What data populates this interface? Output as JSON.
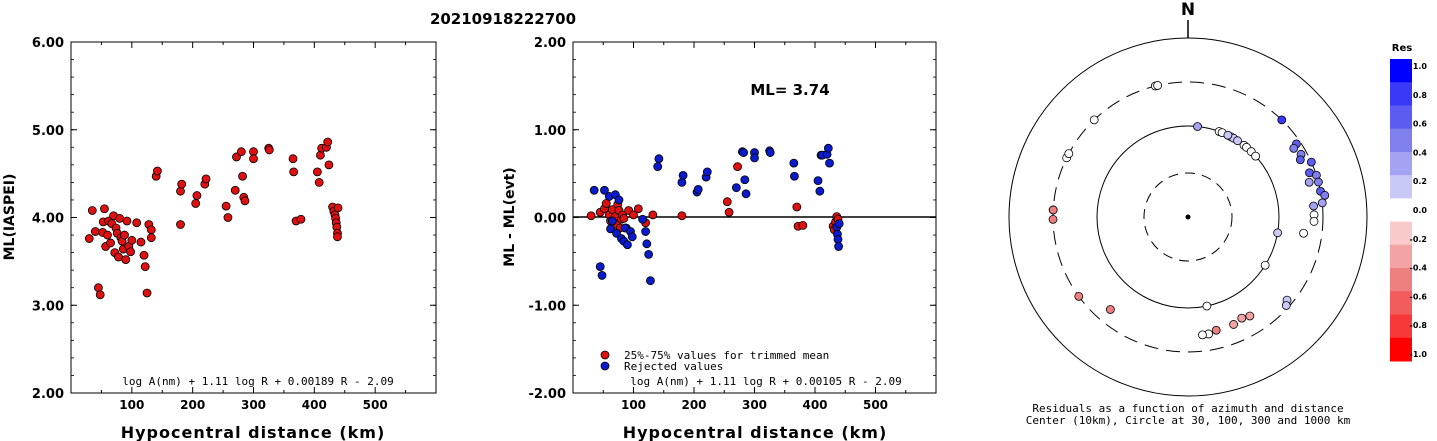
{
  "figure_title": "20210918222700",
  "chart_data": [
    {
      "type": "scatter",
      "ylabel": "ML(IASPEI)",
      "xlabel": "Hypocentral distance (km)",
      "xlim": [
        0,
        600
      ],
      "ylim": [
        2.0,
        6.0
      ],
      "x_ticks": [
        "100",
        "200",
        "300",
        "400",
        "500"
      ],
      "y_ticks": [
        "2.00",
        "3.00",
        "4.00",
        "5.00",
        "6.00"
      ],
      "formula": "log A(nm) + 1.11 log R + 0.00189 R - 2.09",
      "series": [
        {
          "color": "#dd1111",
          "points": [
            [
              30,
              3.76
            ],
            [
              35,
              4.08
            ],
            [
              40,
              3.84
            ],
            [
              45,
              3.2
            ],
            [
              48,
              3.12
            ],
            [
              52,
              3.83
            ],
            [
              53,
              3.95
            ],
            [
              55,
              4.1
            ],
            [
              57,
              3.67
            ],
            [
              60,
              3.8
            ],
            [
              62,
              3.96
            ],
            [
              65,
              3.71
            ],
            [
              67,
              3.93
            ],
            [
              70,
              4.02
            ],
            [
              72,
              3.6
            ],
            [
              74,
              3.88
            ],
            [
              76,
              3.82
            ],
            [
              78,
              3.55
            ],
            [
              80,
              3.99
            ],
            [
              82,
              3.77
            ],
            [
              84,
              3.73
            ],
            [
              86,
              3.64
            ],
            [
              88,
              3.8
            ],
            [
              90,
              3.52
            ],
            [
              92,
              3.96
            ],
            [
              95,
              3.67
            ],
            [
              98,
              3.61
            ],
            [
              100,
              3.74
            ],
            [
              108,
              3.94
            ],
            [
              115,
              3.72
            ],
            [
              120,
              3.57
            ],
            [
              122,
              3.44
            ],
            [
              125,
              3.14
            ],
            [
              128,
              3.92
            ],
            [
              132,
              3.86
            ],
            [
              132,
              3.77
            ],
            [
              140,
              4.47
            ],
            [
              142,
              4.53
            ],
            [
              180,
              4.3
            ],
            [
              182,
              4.38
            ],
            [
              180,
              3.92
            ],
            [
              205,
              4.16
            ],
            [
              207,
              4.25
            ],
            [
              220,
              4.38
            ],
            [
              222,
              4.44
            ],
            [
              255,
              4.13
            ],
            [
              258,
              4.0
            ],
            [
              270,
              4.31
            ],
            [
              272,
              4.69
            ],
            [
              280,
              4.75
            ],
            [
              282,
              4.47
            ],
            [
              284,
              4.23
            ],
            [
              286,
              4.19
            ],
            [
              300,
              4.75
            ],
            [
              300,
              4.67
            ],
            [
              325,
              4.79
            ],
            [
              326,
              4.77
            ],
            [
              365,
              4.67
            ],
            [
              366,
              4.52
            ],
            [
              370,
              3.96
            ],
            [
              378,
              3.98
            ],
            [
              405,
              4.52
            ],
            [
              408,
              4.4
            ],
            [
              410,
              4.71
            ],
            [
              412,
              4.79
            ],
            [
              420,
              4.8
            ],
            [
              422,
              4.86
            ],
            [
              424,
              4.6
            ],
            [
              430,
              4.12
            ],
            [
              432,
              4.07
            ],
            [
              434,
              4.03
            ],
            [
              435,
              3.99
            ],
            [
              436,
              3.94
            ],
            [
              437,
              3.89
            ],
            [
              438,
              3.82
            ],
            [
              438,
              3.78
            ],
            [
              439,
              4.11
            ]
          ]
        }
      ]
    },
    {
      "type": "scatter",
      "ylabel": "ML - ML(evt)",
      "xlabel": "Hypocentral distance (km)",
      "xlim": [
        0,
        600
      ],
      "ylim": [
        -2.0,
        2.0
      ],
      "x_ticks": [
        "100",
        "200",
        "300",
        "400",
        "500"
      ],
      "y_ticks": [
        "-2.00",
        "-1.00",
        "0.00",
        "1.00",
        "2.00"
      ],
      "annotation": "ML= 3.74",
      "formula": "log A(nm) + 1.11 log R + 0.00105 R - 2.09",
      "legend": [
        "25%-75% values for trimmed mean",
        "Rejected values"
      ],
      "series": [
        {
          "color": "#dd1111",
          "points": [
            [
              30,
              0.02
            ],
            [
              45,
              0.06
            ],
            [
              52,
              0.1
            ],
            [
              55,
              0.16
            ],
            [
              60,
              0.03
            ],
            [
              62,
              -0.04
            ],
            [
              65,
              0.09
            ],
            [
              70,
              0.01
            ],
            [
              72,
              -0.08
            ],
            [
              74,
              0.15
            ],
            [
              76,
              0.08
            ],
            [
              78,
              -0.12
            ],
            [
              80,
              -0.02
            ],
            [
              82,
              0.03
            ],
            [
              84,
              -0.01
            ],
            [
              88,
              -0.12
            ],
            [
              92,
              0.08
            ],
            [
              100,
              0.03
            ],
            [
              108,
              0.1
            ],
            [
              120,
              -0.06
            ],
            [
              132,
              0.03
            ],
            [
              180,
              0.02
            ],
            [
              255,
              0.18
            ],
            [
              258,
              0.06
            ],
            [
              272,
              0.58
            ],
            [
              370,
              0.12
            ],
            [
              372,
              -0.1
            ],
            [
              380,
              -0.09
            ],
            [
              430,
              -0.1
            ],
            [
              432,
              -0.14
            ],
            [
              434,
              -0.05
            ],
            [
              436,
              0.01
            ],
            [
              438,
              -0.02
            ]
          ]
        },
        {
          "color": "#0a1bcc",
          "points": [
            [
              35,
              0.31
            ],
            [
              45,
              -0.56
            ],
            [
              48,
              -0.66
            ],
            [
              52,
              0.31
            ],
            [
              60,
              0.24
            ],
            [
              62,
              -0.13
            ],
            [
              65,
              -0.04
            ],
            [
              70,
              0.26
            ],
            [
              72,
              -0.18
            ],
            [
              76,
              0.2
            ],
            [
              80,
              -0.24
            ],
            [
              84,
              -0.27
            ],
            [
              86,
              -0.12
            ],
            [
              90,
              -0.31
            ],
            [
              95,
              -0.16
            ],
            [
              98,
              -0.22
            ],
            [
              115,
              -0.02
            ],
            [
              120,
              -0.16
            ],
            [
              122,
              -0.3
            ],
            [
              125,
              -0.42
            ],
            [
              128,
              -0.72
            ],
            [
              140,
              0.58
            ],
            [
              142,
              0.67
            ],
            [
              180,
              0.4
            ],
            [
              182,
              0.48
            ],
            [
              205,
              0.29
            ],
            [
              207,
              0.32
            ],
            [
              220,
              0.46
            ],
            [
              222,
              0.52
            ],
            [
              270,
              0.34
            ],
            [
              280,
              0.75
            ],
            [
              282,
              0.74
            ],
            [
              284,
              0.43
            ],
            [
              286,
              0.27
            ],
            [
              300,
              0.74
            ],
            [
              300,
              0.68
            ],
            [
              325,
              0.76
            ],
            [
              326,
              0.74
            ],
            [
              365,
              0.62
            ],
            [
              366,
              0.47
            ],
            [
              405,
              0.42
            ],
            [
              408,
              0.3
            ],
            [
              410,
              0.71
            ],
            [
              412,
              0.71
            ],
            [
              420,
              0.72
            ],
            [
              422,
              0.79
            ],
            [
              424,
              0.62
            ],
            [
              436,
              -0.11
            ],
            [
              437,
              -0.19
            ],
            [
              438,
              -0.25
            ],
            [
              439,
              -0.33
            ],
            [
              440,
              -0.07
            ]
          ]
        }
      ]
    },
    {
      "type": "scatter",
      "north_label": "N",
      "caption_line1": "Residuals as a function of azimuth and distance",
      "caption_line2": "Center (10km), Circle at 30, 100, 300 and 1000 km",
      "colorbar_title": "Res",
      "colorbar_ticks": [
        "1.0",
        "0.8",
        "0.6",
        "0.4",
        "0.2",
        "0.0",
        "-0.2",
        "-0.4",
        "-0.6",
        "-0.8",
        "-1.0"
      ],
      "colorbar_colors": [
        "#0000ff",
        "#3939f7",
        "#5c5cf2",
        "#7f7fee",
        "#a3a3f2",
        "#c9c9f8",
        "#ffffff",
        "#f8caca",
        "#f2a3a3",
        "#ee7f7f",
        "#f25c5c",
        "#f73939",
        "#ff0000"
      ],
      "rings_km": [
        30,
        100,
        300,
        1000
      ],
      "points": [
        {
          "az": 44,
          "dist": 300,
          "res": 0.8
        },
        {
          "az": -14,
          "dist": 300,
          "res": 0.0
        },
        {
          "az": -13,
          "dist": 300,
          "res": 0.0
        },
        {
          "az": -44,
          "dist": 300,
          "res": 0.0
        },
        {
          "az": -64,
          "dist": 300,
          "res": 0.0
        },
        {
          "az": -62,
          "dist": 300,
          "res": 0.0
        },
        {
          "az": -87,
          "dist": 300,
          "res": -0.5
        },
        {
          "az": -87,
          "dist": 300,
          "res": -0.5
        },
        {
          "az": -91,
          "dist": 300,
          "res": -0.5
        },
        {
          "az": -126,
          "dist": 300,
          "res": -0.45
        },
        {
          "az": 56,
          "dist": 270,
          "res": 0.6
        },
        {
          "az": 57,
          "dist": 240,
          "res": 0.55
        },
        {
          "az": 61,
          "dist": 260,
          "res": 0.5
        },
        {
          "az": 63,
          "dist": 240,
          "res": 0.6
        },
        {
          "az": 66,
          "dist": 300,
          "res": 0.6
        },
        {
          "az": 70,
          "dist": 260,
          "res": 0.6
        },
        {
          "az": 72,
          "dist": 300,
          "res": 0.55
        },
        {
          "az": 74,
          "dist": 240,
          "res": 0.4
        },
        {
          "az": 75,
          "dist": 300,
          "res": 0.55
        },
        {
          "az": 79,
          "dist": 300,
          "res": 0.7
        },
        {
          "az": 81,
          "dist": 330,
          "res": 0.45
        },
        {
          "az": 84,
          "dist": 300,
          "res": 0.3
        },
        {
          "az": 85,
          "dist": 240,
          "res": 0.3
        },
        {
          "az": 89,
          "dist": 240,
          "res": 0.0
        },
        {
          "az": 92,
          "dist": 240,
          "res": 0.0
        },
        {
          "az": 98,
          "dist": 190,
          "res": 0.0
        },
        {
          "az": 130,
          "dist": 260,
          "res": 0.2
        },
        {
          "az": 132,
          "dist": 280,
          "res": 0.2
        },
        {
          "az": 148,
          "dist": 190,
          "res": -0.3
        },
        {
          "az": 152,
          "dist": 180,
          "res": -0.4
        },
        {
          "az": 157,
          "dist": 190,
          "res": -0.3
        },
        {
          "az": 166,
          "dist": 190,
          "res": -0.5
        },
        {
          "az": 170,
          "dist": 200,
          "res": 0.0
        },
        {
          "az": 173,
          "dist": 200,
          "res": 0.0
        },
        {
          "az": 168,
          "dist": 100,
          "res": 0.0
        },
        {
          "az": -140,
          "dist": 210,
          "res": -0.45
        },
        {
          "az": 20,
          "dist": 100,
          "res": 0.0
        },
        {
          "az": 22,
          "dist": 100,
          "res": 0.05
        },
        {
          "az": 28,
          "dist": 100,
          "res": 0.0
        },
        {
          "az": 30,
          "dist": 100,
          "res": 0.2
        },
        {
          "az": 33,
          "dist": 100,
          "res": 0.1
        },
        {
          "az": 38,
          "dist": 100,
          "res": 0.0
        },
        {
          "az": 40,
          "dist": 100,
          "res": 0.0
        },
        {
          "az": 44,
          "dist": 100,
          "res": 0.0
        },
        {
          "az": 48,
          "dist": 100,
          "res": 0.0
        },
        {
          "az": 26,
          "dist": 100,
          "res": 0.1
        },
        {
          "az": 6,
          "dist": 100,
          "res": 0.3
        },
        {
          "az": 122,
          "dist": 100,
          "res": 0.0
        },
        {
          "az": 100,
          "dist": 100,
          "res": 0.1
        }
      ]
    }
  ]
}
